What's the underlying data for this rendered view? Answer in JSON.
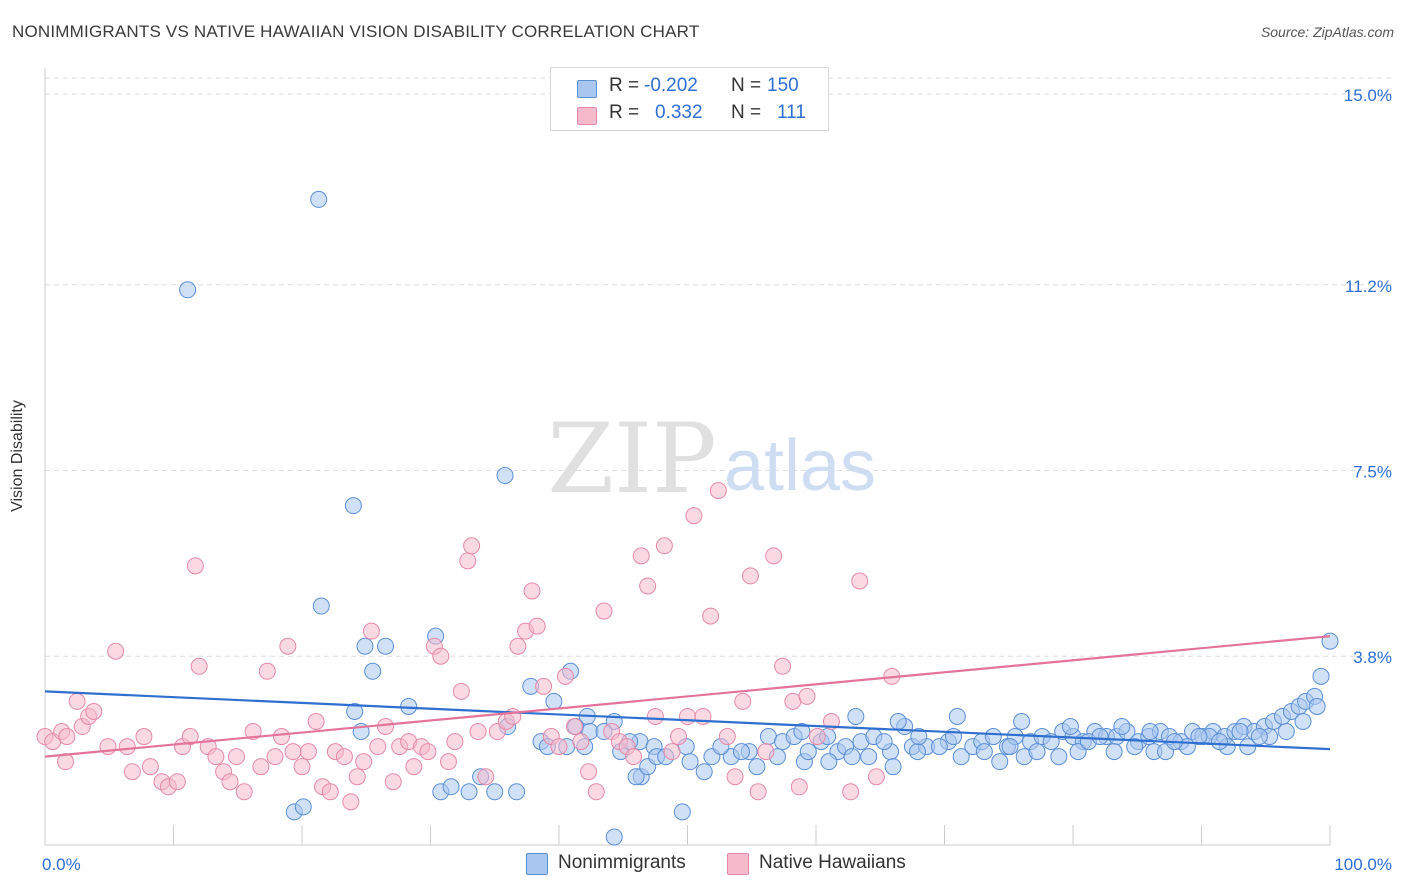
{
  "header": {
    "title": "NONIMMIGRANTS VS NATIVE HAWAIIAN VISION DISABILITY CORRELATION CHART",
    "source": "Source: ZipAtlas.com"
  },
  "watermark": {
    "zip": "ZIP",
    "atlas": "atlas"
  },
  "colors": {
    "blue_fill": "#a9c6ef",
    "blue_stroke": "#5b8fd6",
    "blue_line": "#2f6fd0",
    "pink_fill": "#f5b9cc",
    "pink_stroke": "#e58aa8",
    "pink_line": "#e4739a",
    "tick_text": "#2d6fd3",
    "grid": "#dddddd"
  },
  "legend": {
    "rows": [
      {
        "r_label": "R =",
        "r_value": "-0.202",
        "n_label": "N =",
        "n_value": "150",
        "color": "blue"
      },
      {
        "r_label": "R =",
        "r_value": "0.332",
        "n_label": "N =",
        "n_value": "111",
        "color": "pink"
      }
    ],
    "bottom": [
      {
        "label": "Nonimmigrants",
        "color": "blue"
      },
      {
        "label": "Native Hawaiians",
        "color": "pink"
      }
    ]
  },
  "chart_data": {
    "type": "scatter",
    "title": "NONIMMIGRANTS VS NATIVE HAWAIIAN VISION DISABILITY CORRELATION CHART",
    "xlabel": "",
    "ylabel": "Vision Disability",
    "xlim": [
      0,
      100
    ],
    "ylim": [
      0,
      15.5
    ],
    "x_ticks_labels": [
      "0.0%",
      "100.0%"
    ],
    "y_ticks": [
      3.8,
      7.5,
      11.2,
      15.0
    ],
    "y_tick_labels": [
      "3.8%",
      "7.5%",
      "11.2%",
      "15.0%"
    ],
    "grid": "horizontal dashed",
    "series": [
      {
        "name": "Nonimmigrants",
        "color": "blue",
        "trend": {
          "x": [
            0,
            100
          ],
          "y": [
            3.1,
            1.95
          ]
        },
        "points": [
          [
            21.3,
            12.9
          ],
          [
            11.1,
            11.1
          ],
          [
            35.8,
            7.4
          ],
          [
            24.0,
            6.8
          ],
          [
            21.5,
            4.8
          ],
          [
            24.9,
            4.0
          ],
          [
            26.5,
            4.0
          ],
          [
            30.4,
            4.2
          ],
          [
            25.5,
            3.5
          ],
          [
            40.9,
            3.5
          ],
          [
            37.8,
            3.2
          ],
          [
            39.6,
            2.9
          ],
          [
            28.3,
            2.8
          ],
          [
            24.1,
            2.7
          ],
          [
            42.2,
            2.6
          ],
          [
            41.3,
            2.4
          ],
          [
            36.0,
            2.4
          ],
          [
            42.4,
            2.3
          ],
          [
            44.3,
            2.5
          ],
          [
            38.6,
            2.1
          ],
          [
            39.1,
            2.0
          ],
          [
            40.6,
            2.0
          ],
          [
            43.5,
            2.3
          ],
          [
            46.3,
            2.1
          ],
          [
            47.4,
            2.0
          ],
          [
            49.9,
            2.0
          ],
          [
            51.9,
            1.8
          ],
          [
            53.4,
            1.8
          ],
          [
            54.8,
            1.9
          ],
          [
            56.3,
            2.2
          ],
          [
            57.4,
            2.1
          ],
          [
            58.3,
            2.2
          ],
          [
            59.1,
            1.7
          ],
          [
            60.4,
            2.1
          ],
          [
            61.7,
            1.9
          ],
          [
            62.3,
            2.0
          ],
          [
            63.5,
            2.1
          ],
          [
            64.5,
            2.2
          ],
          [
            65.8,
            1.9
          ],
          [
            66.9,
            2.4
          ],
          [
            67.5,
            2.0
          ],
          [
            68.6,
            2.0
          ],
          [
            70.3,
            2.1
          ],
          [
            71.3,
            1.8
          ],
          [
            72.2,
            2.0
          ],
          [
            72.9,
            2.1
          ],
          [
            73.8,
            2.2
          ],
          [
            74.9,
            2.0
          ],
          [
            75.5,
            2.2
          ],
          [
            76.7,
            2.1
          ],
          [
            77.6,
            2.2
          ],
          [
            78.3,
            2.1
          ],
          [
            79.2,
            2.3
          ],
          [
            80.0,
            2.2
          ],
          [
            80.8,
            2.1
          ],
          [
            81.7,
            2.3
          ],
          [
            82.6,
            2.2
          ],
          [
            83.4,
            2.2
          ],
          [
            84.2,
            2.3
          ],
          [
            85.1,
            2.1
          ],
          [
            85.9,
            2.2
          ],
          [
            86.8,
            2.3
          ],
          [
            87.5,
            2.2
          ],
          [
            88.4,
            2.1
          ],
          [
            89.3,
            2.3
          ],
          [
            90.1,
            2.2
          ],
          [
            90.9,
            2.3
          ],
          [
            91.8,
            2.2
          ],
          [
            92.6,
            2.3
          ],
          [
            93.3,
            2.4
          ],
          [
            94.1,
            2.3
          ],
          [
            94.9,
            2.4
          ],
          [
            95.6,
            2.5
          ],
          [
            96.3,
            2.6
          ],
          [
            97.0,
            2.7
          ],
          [
            97.6,
            2.8
          ],
          [
            98.1,
            2.9
          ],
          [
            98.8,
            3.0
          ],
          [
            99.3,
            3.4
          ],
          [
            100,
            4.1
          ],
          [
            44.3,
            0.2
          ],
          [
            49.6,
            0.7
          ],
          [
            19.4,
            0.7
          ],
          [
            30.8,
            1.1
          ],
          [
            33.0,
            1.1
          ],
          [
            36.7,
            1.1
          ],
          [
            35.0,
            1.1
          ],
          [
            31.6,
            1.2
          ],
          [
            46.4,
            1.4
          ],
          [
            46.0,
            1.4
          ],
          [
            51.3,
            1.5
          ],
          [
            55.4,
            1.6
          ],
          [
            46.9,
            1.6
          ],
          [
            47.6,
            1.8
          ],
          [
            48.3,
            1.8
          ],
          [
            50.2,
            1.7
          ],
          [
            57.0,
            1.8
          ],
          [
            59.4,
            1.9
          ],
          [
            61.0,
            1.7
          ],
          [
            64.1,
            1.8
          ],
          [
            66.0,
            1.6
          ],
          [
            67.9,
            1.9
          ],
          [
            69.6,
            2.0
          ],
          [
            74.3,
            1.7
          ],
          [
            76.2,
            1.8
          ],
          [
            78.9,
            1.8
          ],
          [
            80.4,
            1.9
          ],
          [
            83.2,
            1.9
          ],
          [
            84.8,
            2.0
          ],
          [
            86.3,
            1.9
          ],
          [
            87.2,
            1.9
          ],
          [
            88.9,
            2.0
          ],
          [
            92.0,
            2.0
          ],
          [
            93.6,
            2.0
          ],
          [
            95.3,
            2.2
          ],
          [
            63.1,
            2.6
          ],
          [
            66.4,
            2.5
          ],
          [
            71.0,
            2.6
          ],
          [
            76.0,
            2.5
          ],
          [
            79.8,
            2.4
          ],
          [
            83.8,
            2.4
          ],
          [
            86.0,
            2.3
          ],
          [
            90.6,
            2.2
          ],
          [
            33.9,
            1.4
          ],
          [
            42.0,
            2.0
          ],
          [
            44.8,
            1.9
          ],
          [
            45.5,
            2.1
          ],
          [
            52.6,
            2.0
          ],
          [
            54.2,
            1.9
          ],
          [
            58.9,
            2.3
          ],
          [
            60.9,
            2.2
          ],
          [
            62.8,
            1.8
          ],
          [
            65.3,
            2.1
          ],
          [
            68.0,
            2.2
          ],
          [
            70.7,
            2.2
          ],
          [
            73.1,
            1.9
          ],
          [
            75.1,
            2.0
          ],
          [
            77.2,
            1.9
          ],
          [
            81.2,
            2.1
          ],
          [
            82.1,
            2.2
          ],
          [
            87.9,
            2.1
          ],
          [
            89.8,
            2.2
          ],
          [
            91.4,
            2.1
          ],
          [
            93.0,
            2.3
          ],
          [
            94.5,
            2.2
          ],
          [
            96.6,
            2.3
          ],
          [
            97.9,
            2.5
          ],
          [
            99.0,
            2.8
          ],
          [
            20.1,
            0.8
          ],
          [
            24.6,
            2.3
          ]
        ]
      },
      {
        "name": "Native Hawaiians",
        "color": "pink",
        "trend": {
          "x": [
            0,
            100
          ],
          "y": [
            1.8,
            4.2
          ]
        },
        "points": [
          [
            0.0,
            2.2
          ],
          [
            0.6,
            2.1
          ],
          [
            1.3,
            2.3
          ],
          [
            1.7,
            2.2
          ],
          [
            2.5,
            2.9
          ],
          [
            2.9,
            2.4
          ],
          [
            3.4,
            2.6
          ],
          [
            3.8,
            2.7
          ],
          [
            1.6,
            1.7
          ],
          [
            4.9,
            2.0
          ],
          [
            5.5,
            3.9
          ],
          [
            6.4,
            2.0
          ],
          [
            6.8,
            1.5
          ],
          [
            7.7,
            2.2
          ],
          [
            8.2,
            1.6
          ],
          [
            9.1,
            1.3
          ],
          [
            9.6,
            1.2
          ],
          [
            10.3,
            1.3
          ],
          [
            10.7,
            2.0
          ],
          [
            11.3,
            2.2
          ],
          [
            11.7,
            5.6
          ],
          [
            12.0,
            3.6
          ],
          [
            12.7,
            2.0
          ],
          [
            13.3,
            1.8
          ],
          [
            13.9,
            1.5
          ],
          [
            14.4,
            1.3
          ],
          [
            14.9,
            1.8
          ],
          [
            15.5,
            1.1
          ],
          [
            16.2,
            2.3
          ],
          [
            16.8,
            1.6
          ],
          [
            17.3,
            3.5
          ],
          [
            17.9,
            1.8
          ],
          [
            18.4,
            2.2
          ],
          [
            18.9,
            4.0
          ],
          [
            19.3,
            1.9
          ],
          [
            20.0,
            1.6
          ],
          [
            20.5,
            1.9
          ],
          [
            21.1,
            2.5
          ],
          [
            21.6,
            1.2
          ],
          [
            22.2,
            1.1
          ],
          [
            22.6,
            1.9
          ],
          [
            23.3,
            1.8
          ],
          [
            23.8,
            0.9
          ],
          [
            24.3,
            1.4
          ],
          [
            24.8,
            1.7
          ],
          [
            25.4,
            4.3
          ],
          [
            25.9,
            2.0
          ],
          [
            26.5,
            2.4
          ],
          [
            27.1,
            1.3
          ],
          [
            27.6,
            2.0
          ],
          [
            28.3,
            2.1
          ],
          [
            28.7,
            1.6
          ],
          [
            29.3,
            2.0
          ],
          [
            29.8,
            1.9
          ],
          [
            30.3,
            4.0
          ],
          [
            30.8,
            3.8
          ],
          [
            31.4,
            1.7
          ],
          [
            31.9,
            2.1
          ],
          [
            32.4,
            3.1
          ],
          [
            32.9,
            5.7
          ],
          [
            33.2,
            6.0
          ],
          [
            33.7,
            2.3
          ],
          [
            34.3,
            1.4
          ],
          [
            35.2,
            2.3
          ],
          [
            35.9,
            2.5
          ],
          [
            36.4,
            2.6
          ],
          [
            36.8,
            4.0
          ],
          [
            37.4,
            4.3
          ],
          [
            37.9,
            5.1
          ],
          [
            38.3,
            4.4
          ],
          [
            38.8,
            3.2
          ],
          [
            39.4,
            2.2
          ],
          [
            40.0,
            2.0
          ],
          [
            40.5,
            3.4
          ],
          [
            41.2,
            2.4
          ],
          [
            41.7,
            2.1
          ],
          [
            42.3,
            1.5
          ],
          [
            42.9,
            1.1
          ],
          [
            43.5,
            4.7
          ],
          [
            44.1,
            2.3
          ],
          [
            44.7,
            2.1
          ],
          [
            45.3,
            2.0
          ],
          [
            45.8,
            1.8
          ],
          [
            46.4,
            5.8
          ],
          [
            46.9,
            5.2
          ],
          [
            47.5,
            2.6
          ],
          [
            48.2,
            6.0
          ],
          [
            48.8,
            1.9
          ],
          [
            49.3,
            2.2
          ],
          [
            50.0,
            2.6
          ],
          [
            50.5,
            6.6
          ],
          [
            51.2,
            2.6
          ],
          [
            51.8,
            4.6
          ],
          [
            52.4,
            7.1
          ],
          [
            53.1,
            2.2
          ],
          [
            53.7,
            1.4
          ],
          [
            54.3,
            2.9
          ],
          [
            54.9,
            5.4
          ],
          [
            55.5,
            1.1
          ],
          [
            56.1,
            1.9
          ],
          [
            56.7,
            5.8
          ],
          [
            57.4,
            3.6
          ],
          [
            58.2,
            2.9
          ],
          [
            58.7,
            1.2
          ],
          [
            59.3,
            3.0
          ],
          [
            60.1,
            2.2
          ],
          [
            61.2,
            2.5
          ],
          [
            62.7,
            1.1
          ],
          [
            63.4,
            5.3
          ],
          [
            64.7,
            1.4
          ],
          [
            65.9,
            3.4
          ]
        ]
      }
    ]
  }
}
